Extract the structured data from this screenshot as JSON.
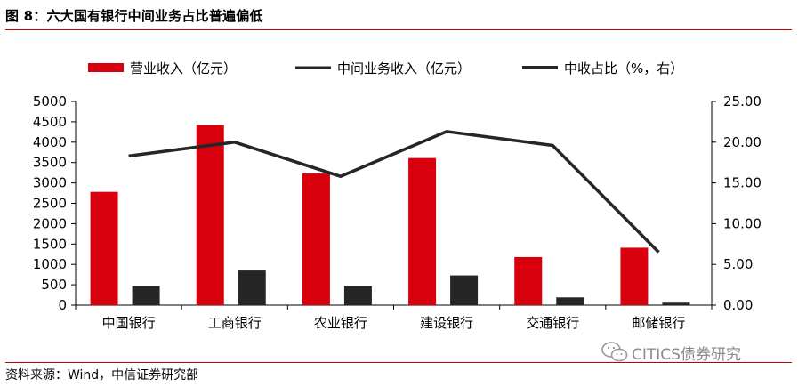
{
  "figure": {
    "title": "图 8：六大国有银行中间业务占比普遍偏低",
    "source": "资料来源：Wind，中信证券研究部",
    "watermark": "CITICS债券研究",
    "colors": {
      "rule": "#c00000",
      "revenue_bar": "#d9000d",
      "fee_bar": "#262626",
      "ratio_line": "#262626"
    }
  },
  "chart_data": {
    "type": "bar",
    "categories": [
      "中国银行",
      "工商银行",
      "农业银行",
      "建设银行",
      "交通银行",
      "邮储银行"
    ],
    "series": [
      {
        "name": "营业收入（亿元）",
        "type": "bar",
        "axis": "left",
        "values": [
          2780,
          4420,
          3230,
          3610,
          1180,
          1410
        ]
      },
      {
        "name": "中间业务收入（亿元）",
        "type": "bar",
        "axis": "left",
        "values": [
          470,
          850,
          470,
          730,
          190,
          60
        ]
      },
      {
        "name": "中收占比（%，右）",
        "type": "line",
        "axis": "right",
        "values": [
          18.3,
          20.0,
          15.8,
          21.3,
          19.6,
          6.5
        ]
      }
    ],
    "y_left": {
      "ylim": [
        0,
        5000
      ],
      "ticks": [
        "0",
        "500",
        "1000",
        "1500",
        "2000",
        "2500",
        "3000",
        "3500",
        "4000",
        "4500",
        "5000"
      ]
    },
    "y_right": {
      "ylim": [
        0,
        25
      ],
      "ticks": [
        "0.00",
        "5.00",
        "10.00",
        "15.00",
        "20.00",
        "25.00"
      ]
    },
    "legend_placement": "top",
    "grid": false
  }
}
